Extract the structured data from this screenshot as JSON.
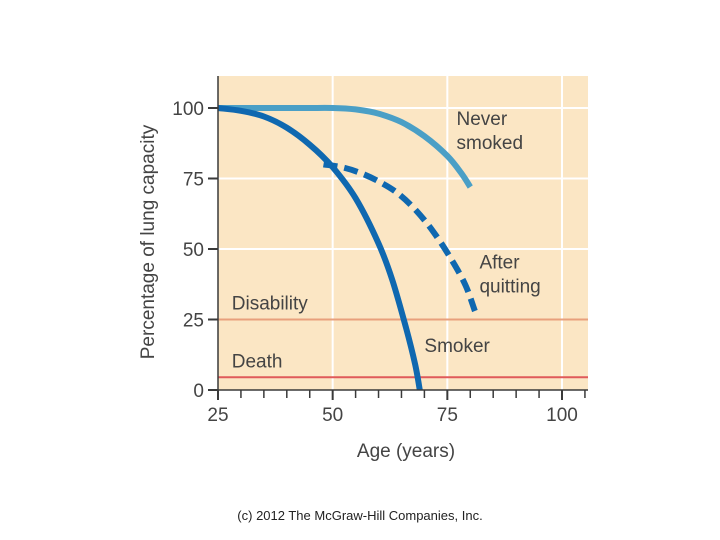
{
  "chart_data": {
    "type": "line",
    "title": "",
    "xlabel": "Age (years)",
    "ylabel": "Percentage of lung capacity",
    "xlim": [
      25,
      105
    ],
    "ylim": [
      0,
      112
    ],
    "xticks": [
      25,
      50,
      75,
      100
    ],
    "yticks": [
      0,
      25,
      50,
      75,
      100
    ],
    "grid": true,
    "colors": {
      "plot_background": "#fbe6c4",
      "grid": "#ffffff",
      "axis": "#3a3a3a",
      "never_smoked": "#4a9fc6",
      "smoker": "#0f68b0",
      "after_quitting": "#0f68b0",
      "disability_line": "#e8a07c",
      "death_line": "#e05a5a",
      "text": "#444444"
    },
    "series": [
      {
        "name": "Never smoked",
        "style": "solid",
        "x": [
          25,
          30,
          35,
          40,
          45,
          50,
          55,
          60,
          65,
          70,
          75,
          78,
          80
        ],
        "y": [
          100,
          100,
          100,
          100,
          100,
          100,
          99.5,
          98,
          95,
          90,
          83,
          77,
          72
        ]
      },
      {
        "name": "Smoker",
        "style": "solid",
        "x": [
          25,
          30,
          35,
          40,
          45,
          50,
          55,
          60,
          63,
          66,
          68,
          69
        ],
        "y": [
          100,
          99,
          97,
          93,
          87,
          79,
          68,
          52,
          39,
          22,
          9,
          0
        ]
      },
      {
        "name": "After quitting",
        "style": "dashed",
        "x": [
          48,
          52,
          56,
          60,
          64,
          68,
          72,
          76,
          79,
          81
        ],
        "y": [
          80,
          79,
          77,
          74,
          70,
          64,
          56,
          46,
          37,
          28
        ]
      }
    ],
    "reference_lines": [
      {
        "name": "Disability",
        "y": 25
      },
      {
        "name": "Death",
        "y": 4.5
      }
    ],
    "annotations": [
      {
        "text_lines": [
          "Never",
          "smoked"
        ],
        "x": 77,
        "y": 94
      },
      {
        "text_lines": [
          "After",
          "quitting"
        ],
        "x": 82,
        "y": 43
      },
      {
        "text_lines": [
          "Smoker"
        ],
        "x": 70,
        "y": 13.5
      },
      {
        "text_lines": [
          "Disability"
        ],
        "x": 28,
        "y": 28.5
      },
      {
        "text_lines": [
          "Death"
        ],
        "x": 28,
        "y": 8
      }
    ]
  },
  "footer": {
    "copyright": "(c) 2012 The McGraw-Hill Companies, Inc."
  }
}
